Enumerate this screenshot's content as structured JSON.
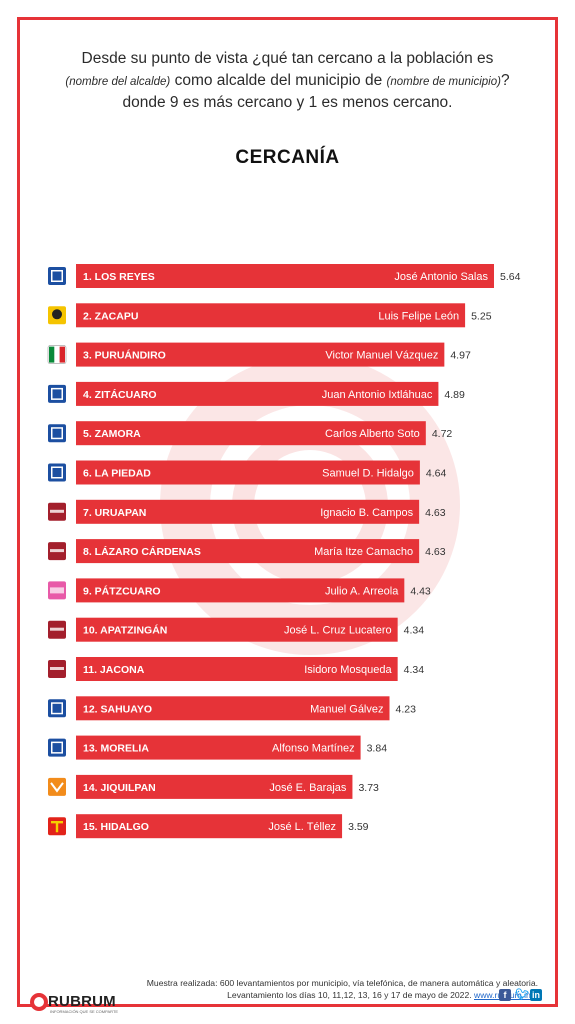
{
  "question": {
    "line1": "Desde su punto de vista ¿qué tan cercano a la población es",
    "line2_a": "(nombre del alcalde)",
    "line2_b": " como alcalde del municipio de ",
    "line2_c": "(nombre de municipio)",
    "line2_d": "?",
    "line3": "donde 9 es más cercano y 1 es menos cercano."
  },
  "colors": {
    "bar": "#e63338",
    "frame": "#e63338",
    "value_text": "#333333"
  },
  "chart_data": {
    "type": "bar",
    "orientation": "horizontal",
    "title": "CERCANÍA",
    "xlabel": "",
    "ylabel": "",
    "xlim": [
      0,
      9
    ],
    "grid": false,
    "categories": [
      "1. LOS REYES",
      "2. ZACAPU",
      "3. PURUÁNDIRO",
      "4. ZITÁCUARO",
      "5. ZAMORA",
      "6. LA PIEDAD",
      "7. URUAPAN",
      "8. LÁZARO CÁRDENAS",
      "9. PÁTZCUARO",
      "10. APATZINGÁN",
      "11. JACONA",
      "12. SAHUAYO",
      "13. MORELIA",
      "14. JIQUILPAN",
      "15. HIDALGO"
    ],
    "names": [
      "José Antonio Salas",
      "Luis Felipe León",
      "Victor Manuel Vázquez",
      "Juan Antonio Ixtláhuac",
      "Carlos Alberto Soto",
      "Samuel D. Hidalgo",
      "Ignacio B. Campos",
      "María Itze Camacho",
      "Julio A. Arreola",
      "José L. Cruz Lucatero",
      "Isidoro Mosqueda",
      "Manuel Gálvez",
      "Alfonso Martínez",
      "José E. Barajas",
      "José L. Téllez"
    ],
    "values": [
      5.64,
      5.25,
      4.97,
      4.89,
      4.72,
      4.64,
      4.63,
      4.63,
      4.43,
      4.34,
      4.34,
      4.23,
      3.84,
      3.73,
      3.59
    ],
    "parties": [
      "pan-icon",
      "prd-icon",
      "pri-icon",
      "pan-icon",
      "pan-icon",
      "pan-icon",
      "morena-icon",
      "morena-icon",
      "fxm-icon",
      "morena-icon",
      "morena-icon",
      "pan-icon",
      "pan-icon",
      "mc-icon",
      "pt-icon"
    ]
  },
  "party_colors": {
    "pan-icon": "#1c4fa1",
    "prd-icon": "#f5c400",
    "pri-icon": "#0a8a3a",
    "morena-icon": "#a31f2c",
    "fxm-icon": "#e85aa8",
    "mc-icon": "#f28c1b",
    "pt-icon": "#e2231a"
  },
  "footer": {
    "line1": "Muestra realizada: 600 levantamientos por municipio, vía telefónica, de manera automática y aleatoria.",
    "line2": "Levantamiento los días 10, 11,12, 13, 16 y 17 de mayo  de 2022. ",
    "url": "www.rubrum.info"
  },
  "brand": {
    "name": "RUBRUM",
    "tagline": "INFORMACIÓN QUE SE COMPARTE"
  }
}
